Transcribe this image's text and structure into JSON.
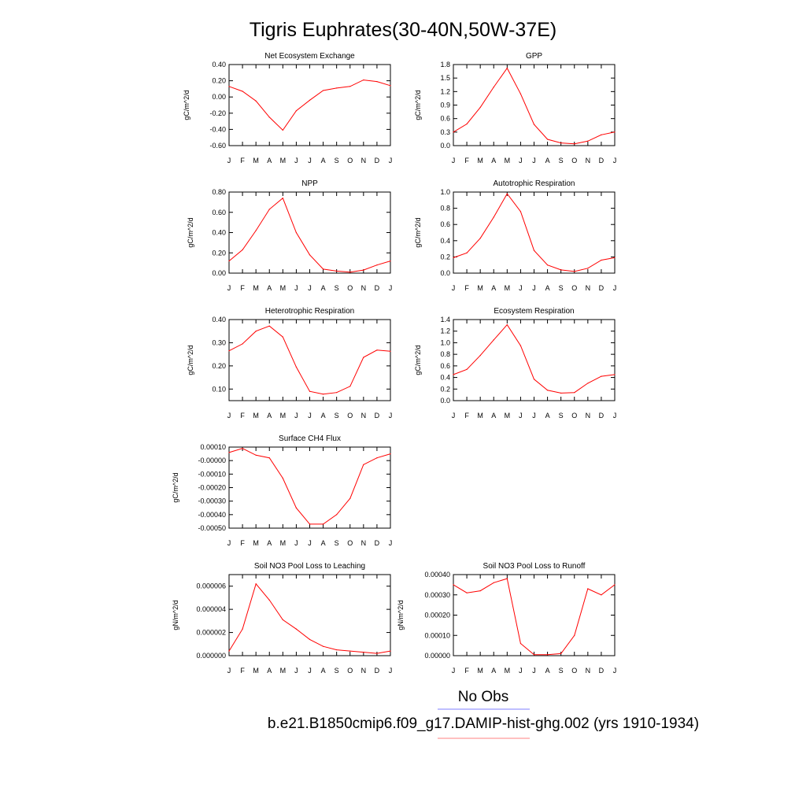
{
  "title": "Tigris Euphrates(30-40N,50W-37E)",
  "legend": {
    "entries": [
      {
        "label": "No Obs",
        "color": "#7f7fff"
      },
      {
        "label": "b.e21.B1850cmip6.f09_g17.DAMIP-hist-ghg.002 (yrs 1910-1934)",
        "color": "#ff8080"
      }
    ]
  },
  "series_color": "#ff0000",
  "chart_data": [
    {
      "type": "line",
      "title": "Net Ecosystem Exchange",
      "ylabel": "gC/m^2/d",
      "categories": [
        "J",
        "F",
        "M",
        "A",
        "M",
        "J",
        "J",
        "A",
        "S",
        "O",
        "N",
        "D",
        "J"
      ],
      "ylim": [
        -0.6,
        0.4
      ],
      "yticks": [
        0.4,
        0.2,
        0.0,
        -0.2,
        -0.4,
        -0.6
      ],
      "ytick_labels": [
        "0.40",
        "0.20",
        "0.00",
        "-0.20",
        "-0.40",
        "-0.60"
      ],
      "values": [
        0.13,
        0.07,
        -0.05,
        -0.25,
        -0.41,
        -0.17,
        -0.04,
        0.08,
        0.11,
        0.13,
        0.21,
        0.19,
        0.14
      ]
    },
    {
      "type": "line",
      "title": "GPP",
      "ylabel": "gC/m^2/d",
      "categories": [
        "J",
        "F",
        "M",
        "A",
        "M",
        "J",
        "J",
        "A",
        "S",
        "O",
        "N",
        "D",
        "J"
      ],
      "ylim": [
        0,
        1.8
      ],
      "yticks": [
        1.8,
        1.5,
        1.2,
        0.9,
        0.6,
        0.3,
        0.0
      ],
      "ytick_labels": [
        "1.8",
        "1.5",
        "1.2",
        "0.9",
        "0.6",
        "0.3",
        "0.0"
      ],
      "values": [
        0.3,
        0.48,
        0.85,
        1.3,
        1.72,
        1.15,
        0.47,
        0.14,
        0.06,
        0.04,
        0.1,
        0.24,
        0.3
      ]
    },
    {
      "type": "line",
      "title": "NPP",
      "ylabel": "gC/m^2/d",
      "categories": [
        "J",
        "F",
        "M",
        "A",
        "M",
        "J",
        "J",
        "A",
        "S",
        "O",
        "N",
        "D",
        "J"
      ],
      "ylim": [
        0,
        0.8
      ],
      "yticks": [
        0.8,
        0.6,
        0.4,
        0.2,
        0.0
      ],
      "ytick_labels": [
        "0.80",
        "0.60",
        "0.40",
        "0.20",
        "0.00"
      ],
      "values": [
        0.12,
        0.23,
        0.42,
        0.63,
        0.74,
        0.4,
        0.18,
        0.04,
        0.02,
        0.01,
        0.03,
        0.08,
        0.12
      ]
    },
    {
      "type": "line",
      "title": "Autotrophic Respiration",
      "ylabel": "gC/m^2/d",
      "categories": [
        "J",
        "F",
        "M",
        "A",
        "M",
        "J",
        "J",
        "A",
        "S",
        "O",
        "N",
        "D",
        "J"
      ],
      "ylim": [
        0,
        1.0
      ],
      "yticks": [
        1.0,
        0.8,
        0.6,
        0.4,
        0.2,
        0.0
      ],
      "ytick_labels": [
        "1.0",
        "0.8",
        "0.6",
        "0.4",
        "0.2",
        "0.0"
      ],
      "values": [
        0.19,
        0.25,
        0.43,
        0.69,
        0.98,
        0.76,
        0.28,
        0.1,
        0.04,
        0.02,
        0.06,
        0.16,
        0.19
      ]
    },
    {
      "type": "line",
      "title": "Heterotrophic Respiration",
      "ylabel": "gC/m^2/d",
      "categories": [
        "J",
        "F",
        "M",
        "A",
        "M",
        "J",
        "J",
        "A",
        "S",
        "O",
        "N",
        "D",
        "J"
      ],
      "ylim": [
        0.05,
        0.4
      ],
      "yticks": [
        0.4,
        0.3,
        0.2,
        0.1
      ],
      "ytick_labels": [
        "0.40",
        "0.30",
        "0.20",
        "0.10"
      ],
      "values": [
        0.265,
        0.295,
        0.35,
        0.372,
        0.325,
        0.195,
        0.09,
        0.078,
        0.085,
        0.112,
        0.237,
        0.268,
        0.263
      ]
    },
    {
      "type": "line",
      "title": "Ecosystem Respiration",
      "ylabel": "gC/m^2/d",
      "categories": [
        "J",
        "F",
        "M",
        "A",
        "M",
        "J",
        "J",
        "A",
        "S",
        "O",
        "N",
        "D",
        "J"
      ],
      "ylim": [
        0,
        1.4
      ],
      "yticks": [
        1.4,
        1.2,
        1.0,
        0.8,
        0.6,
        0.4,
        0.2,
        0.0
      ],
      "ytick_labels": [
        "1.4",
        "1.2",
        "1.0",
        "0.8",
        "0.6",
        "0.4",
        "0.2",
        "0.0"
      ],
      "values": [
        0.45,
        0.54,
        0.78,
        1.05,
        1.31,
        0.95,
        0.37,
        0.18,
        0.13,
        0.14,
        0.3,
        0.42,
        0.45
      ]
    },
    {
      "type": "line",
      "title": "Surface CH4 Flux",
      "ylabel": "gC/m^2/d",
      "categories": [
        "J",
        "F",
        "M",
        "A",
        "M",
        "J",
        "J",
        "A",
        "S",
        "O",
        "N",
        "D",
        "J"
      ],
      "ylim": [
        -0.0005,
        0.0001
      ],
      "yticks": [
        0.0001,
        0.0,
        -0.0001,
        -0.0002,
        -0.0003,
        -0.0004,
        -0.0005
      ],
      "ytick_labels": [
        "0.00010",
        "-0.00000",
        "-0.00010",
        "-0.00020",
        "-0.00030",
        "-0.00040",
        "-0.00050"
      ],
      "values": [
        6e-05,
        9e-05,
        4e-05,
        2e-05,
        -0.00013,
        -0.00035,
        -0.00047,
        -0.00047,
        -0.0004,
        -0.00028,
        -3e-05,
        2e-05,
        5e-05
      ]
    },
    {
      "type": "line",
      "title": "Soil NO3 Pool Loss to Leaching",
      "ylabel": "gN/m^2/d",
      "categories": [
        "J",
        "F",
        "M",
        "A",
        "M",
        "J",
        "J",
        "A",
        "S",
        "O",
        "N",
        "D",
        "J"
      ],
      "ylim": [
        0,
        7e-06
      ],
      "yticks": [
        6e-06,
        4e-06,
        2e-06,
        0.0
      ],
      "ytick_labels": [
        "0.000006",
        "0.000004",
        "0.000002",
        "0.000000"
      ],
      "values": [
        4e-07,
        2.3e-06,
        6.2e-06,
        4.8e-06,
        3.1e-06,
        2.3e-06,
        1.4e-06,
        8e-07,
        5e-07,
        4e-07,
        3e-07,
        2e-07,
        4e-07
      ]
    },
    {
      "type": "line",
      "title": "Soil NO3 Pool Loss to Runoff",
      "ylabel": "gN/m^2/d",
      "categories": [
        "J",
        "F",
        "M",
        "A",
        "M",
        "J",
        "J",
        "A",
        "S",
        "O",
        "N",
        "D",
        "J"
      ],
      "ylim": [
        0,
        0.0004
      ],
      "yticks": [
        0.0004,
        0.0003,
        0.0002,
        0.0001,
        0.0
      ],
      "ytick_labels": [
        "0.00040",
        "0.00030",
        "0.00020",
        "0.00010",
        "0.00000"
      ],
      "values": [
        0.00035,
        0.00031,
        0.00032,
        0.00036,
        0.00038,
        6e-05,
        5e-06,
        5e-06,
        1e-05,
        0.0001,
        0.00033,
        0.0003,
        0.00035
      ]
    }
  ]
}
